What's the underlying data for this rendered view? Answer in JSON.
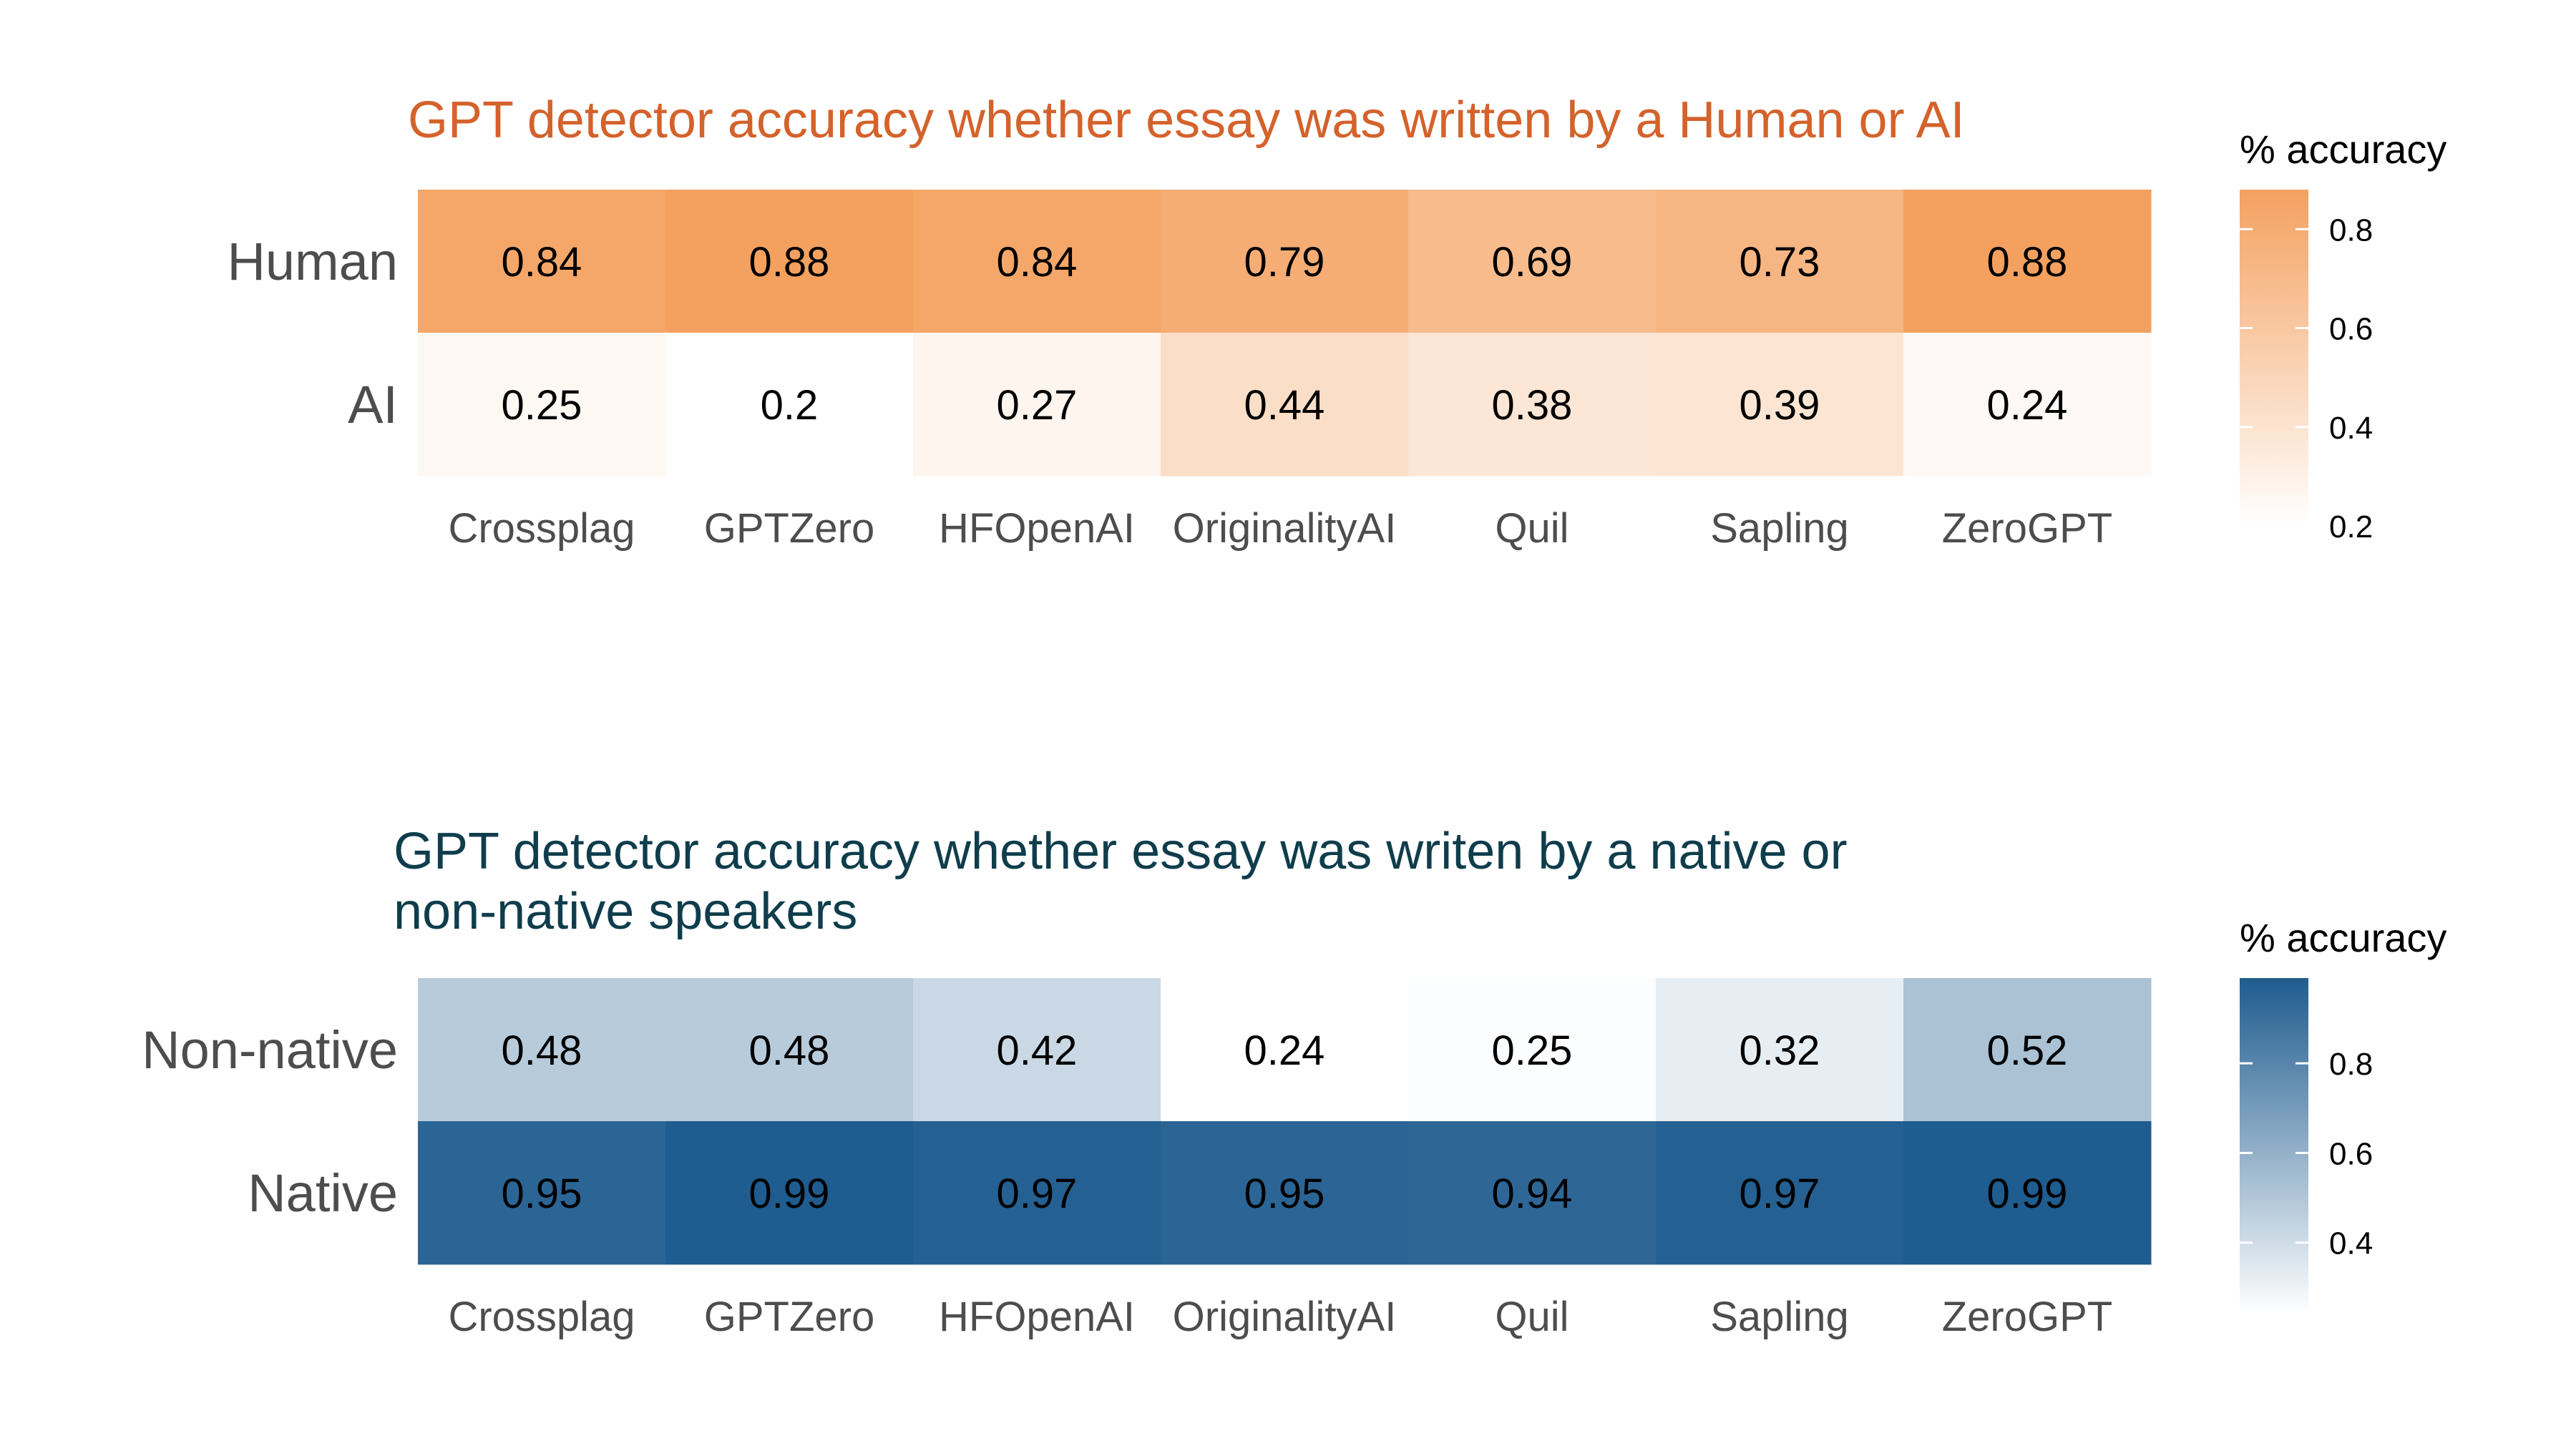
{
  "chart_data": [
    {
      "type": "heatmap",
      "title": "GPT detector accuracy whether essay was written by a Human or AI",
      "title_color": "#d4622b",
      "columns": [
        "Crossplag",
        "GPTZero",
        "HFOpenAI",
        "OriginalityAI",
        "Quil",
        "Sapling",
        "ZeroGPT"
      ],
      "rows": [
        "Human",
        "AI"
      ],
      "values": [
        [
          0.84,
          0.88,
          0.84,
          0.79,
          0.69,
          0.73,
          0.88
        ],
        [
          0.25,
          0.2,
          0.27,
          0.44,
          0.38,
          0.39,
          0.24
        ]
      ],
      "value_labels": [
        [
          "0.84",
          "0.88",
          "0.84",
          "0.79",
          "0.69",
          "0.73",
          "0.88"
        ],
        [
          "0.25",
          "0.2",
          "0.27",
          "0.44",
          "0.38",
          "0.39",
          "0.24"
        ]
      ],
      "color_low": "#ffffff",
      "color_high": "#f4a160",
      "legend": {
        "title": "% accuracy",
        "min": 0.2,
        "max": 0.88,
        "ticks": [
          0.2,
          0.4,
          0.6,
          0.8
        ],
        "tick_labels": [
          "0.2",
          "0.4",
          "0.6",
          "0.8"
        ]
      }
    },
    {
      "type": "heatmap",
      "title_lines": [
        "GPT detector accuracy whether essay was writen by a native or",
        "non-native speakers"
      ],
      "title_color": "#0f3d4c",
      "columns": [
        "Crossplag",
        "GPTZero",
        "HFOpenAI",
        "OriginalityAI",
        "Quil",
        "Sapling",
        "ZeroGPT"
      ],
      "rows": [
        "Non-native",
        "Native"
      ],
      "values": [
        [
          0.48,
          0.48,
          0.42,
          0.24,
          0.25,
          0.32,
          0.52
        ],
        [
          0.95,
          0.99,
          0.97,
          0.95,
          0.94,
          0.97,
          0.99
        ]
      ],
      "value_labels": [
        [
          "0.48",
          "0.48",
          "0.42",
          "0.24",
          "0.25",
          "0.32",
          "0.52"
        ],
        [
          "0.95",
          "0.99",
          "0.97",
          "0.95",
          "0.94",
          "0.97",
          "0.99"
        ]
      ],
      "color_low": "#ffffff",
      "color_high": "#1f5c8f",
      "legend": {
        "title": "% accuracy",
        "min": 0.24,
        "max": 0.99,
        "ticks": [
          0.4,
          0.6,
          0.8
        ],
        "tick_labels": [
          "0.4",
          "0.6",
          "0.8"
        ]
      }
    }
  ]
}
